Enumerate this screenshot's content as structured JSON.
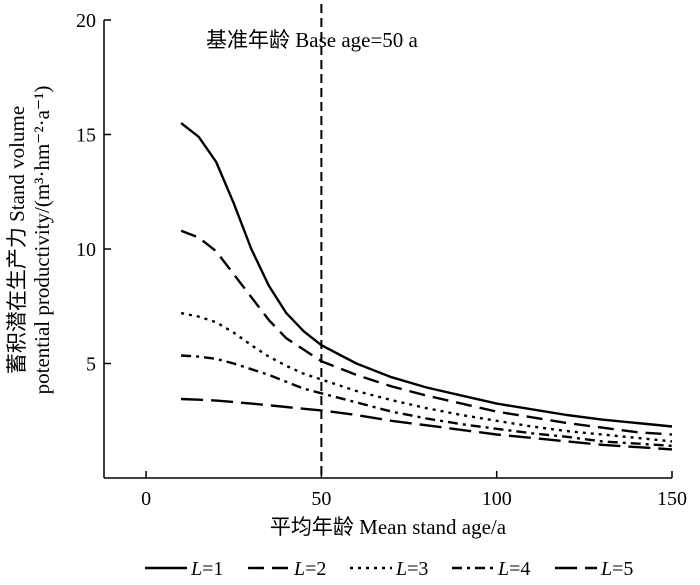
{
  "chart_data": {
    "type": "line",
    "annotation": "基准年龄 Base age=50 a",
    "base_age": 50,
    "xlabel": "平均年龄 Mean stand age/a",
    "ylabel_line1": "蓄积潜在生产力 Stand volume",
    "ylabel_line2": "potential productivity/(m³·hm⁻²·a⁻¹)",
    "xlim": [
      -12,
      150
    ],
    "ylim": [
      0,
      20
    ],
    "xticks": [
      0,
      50,
      100,
      150
    ],
    "yticks": [
      5,
      10,
      15,
      20
    ],
    "x": [
      10,
      15,
      20,
      25,
      30,
      35,
      40,
      45,
      50,
      60,
      70,
      80,
      90,
      100,
      110,
      120,
      130,
      140,
      150
    ],
    "series": [
      {
        "name": "L=1",
        "style": "solid",
        "values": [
          15.5,
          14.9,
          13.8,
          12.0,
          10.0,
          8.4,
          7.2,
          6.4,
          5.8,
          5.0,
          4.4,
          3.95,
          3.6,
          3.25,
          3.0,
          2.75,
          2.55,
          2.4,
          2.25
        ]
      },
      {
        "name": "L=2",
        "style": "long-dash",
        "values": [
          10.8,
          10.5,
          9.9,
          8.9,
          7.9,
          6.9,
          6.1,
          5.6,
          5.1,
          4.5,
          4.0,
          3.6,
          3.25,
          2.9,
          2.65,
          2.4,
          2.2,
          2.0,
          1.9
        ]
      },
      {
        "name": "L=3",
        "style": "dotted",
        "values": [
          7.2,
          7.05,
          6.8,
          6.35,
          5.8,
          5.3,
          4.9,
          4.55,
          4.3,
          3.8,
          3.4,
          3.05,
          2.75,
          2.5,
          2.25,
          2.05,
          1.9,
          1.75,
          1.6
        ]
      },
      {
        "name": "L=4",
        "style": "dash-dot",
        "values": [
          5.35,
          5.3,
          5.2,
          5.0,
          4.75,
          4.5,
          4.2,
          3.9,
          3.7,
          3.3,
          2.9,
          2.6,
          2.35,
          2.15,
          1.95,
          1.8,
          1.6,
          1.5,
          1.4
        ]
      },
      {
        "name": "L=5",
        "style": "dash",
        "values": [
          3.45,
          3.42,
          3.38,
          3.32,
          3.25,
          3.18,
          3.1,
          3.02,
          2.95,
          2.75,
          2.5,
          2.3,
          2.1,
          1.9,
          1.75,
          1.6,
          1.45,
          1.35,
          1.25
        ]
      }
    ],
    "legend": {
      "placement": "bottom",
      "entries": [
        {
          "var": "L",
          "eq": "=1",
          "style": "solid"
        },
        {
          "var": "L",
          "eq": "=2",
          "style": "long-dash"
        },
        {
          "var": "L",
          "eq": "=3",
          "style": "dotted"
        },
        {
          "var": "L",
          "eq": "=4",
          "style": "dash-dot"
        },
        {
          "var": "L",
          "eq": "=5",
          "style": "dash"
        }
      ]
    },
    "grid": false
  }
}
